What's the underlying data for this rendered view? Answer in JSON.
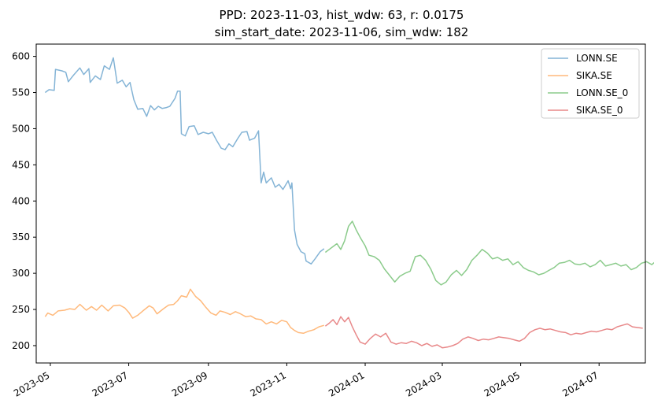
{
  "chart_data": {
    "type": "line",
    "title_line1": "PPD: 2023-11-03, hist_wdw: 63, r: 0.0175",
    "title_line2": "sim_start_date: 2023-11-06, sim_wdw: 182",
    "xlabel": "",
    "ylabel": "",
    "x_range": [
      "2023-04-20",
      "2024-08-06"
    ],
    "ylim": [
      176,
      617
    ],
    "x_ticks": [
      "2023-05",
      "2023-07",
      "2023-09",
      "2023-11",
      "2024-01",
      "2024-03",
      "2024-05",
      "2024-07"
    ],
    "y_ticks": [
      200,
      250,
      300,
      350,
      400,
      450,
      500,
      550,
      600
    ],
    "grid": false,
    "legend_position": "upper right",
    "series": [
      {
        "name": "LONN.SE",
        "color": "#1f77b4",
        "points": [
          [
            "2023-04-27",
            550
          ],
          [
            "2023-04-30",
            554
          ],
          [
            "2023-05-04",
            553
          ],
          [
            "2023-05-05",
            582
          ],
          [
            "2023-05-10",
            580
          ],
          [
            "2023-05-13",
            578
          ],
          [
            "2023-05-15",
            565
          ],
          [
            "2023-05-19",
            574
          ],
          [
            "2023-05-24",
            584
          ],
          [
            "2023-05-27",
            575
          ],
          [
            "2023-05-31",
            583
          ],
          [
            "2023-06-01",
            564
          ],
          [
            "2023-06-05",
            573
          ],
          [
            "2023-06-09",
            568
          ],
          [
            "2023-06-12",
            587
          ],
          [
            "2023-06-16",
            582
          ],
          [
            "2023-06-19",
            598
          ],
          [
            "2023-06-22",
            563
          ],
          [
            "2023-06-26",
            567
          ],
          [
            "2023-06-29",
            558
          ],
          [
            "2023-07-02",
            564
          ],
          [
            "2023-07-05",
            540
          ],
          [
            "2023-07-08",
            527
          ],
          [
            "2023-07-12",
            528
          ],
          [
            "2023-07-15",
            517
          ],
          [
            "2023-07-18",
            532
          ],
          [
            "2023-07-21",
            526
          ],
          [
            "2023-07-24",
            531
          ],
          [
            "2023-07-27",
            528
          ],
          [
            "2023-07-30",
            529
          ],
          [
            "2023-08-02",
            531
          ],
          [
            "2023-08-06",
            542
          ],
          [
            "2023-08-08",
            552
          ],
          [
            "2023-08-10",
            552
          ],
          [
            "2023-08-11",
            493
          ],
          [
            "2023-08-14",
            490
          ],
          [
            "2023-08-17",
            503
          ],
          [
            "2023-08-21",
            504
          ],
          [
            "2023-08-24",
            492
          ],
          [
            "2023-08-28",
            495
          ],
          [
            "2023-09-01",
            493
          ],
          [
            "2023-09-04",
            495
          ],
          [
            "2023-09-07",
            485
          ],
          [
            "2023-09-11",
            473
          ],
          [
            "2023-09-14",
            471
          ],
          [
            "2023-09-17",
            479
          ],
          [
            "2023-09-20",
            475
          ],
          [
            "2023-09-24",
            487
          ],
          [
            "2023-09-27",
            495
          ],
          [
            "2023-10-01",
            496
          ],
          [
            "2023-10-03",
            484
          ],
          [
            "2023-10-07",
            487
          ],
          [
            "2023-10-10",
            497
          ],
          [
            "2023-10-12",
            425
          ],
          [
            "2023-10-14",
            440
          ],
          [
            "2023-10-16",
            425
          ],
          [
            "2023-10-20",
            432
          ],
          [
            "2023-10-23",
            419
          ],
          [
            "2023-10-26",
            423
          ],
          [
            "2023-10-29",
            416
          ],
          [
            "2023-11-02",
            428
          ],
          [
            "2023-11-04",
            417
          ],
          [
            "2023-11-05",
            425
          ],
          [
            "2023-11-07",
            360
          ],
          [
            "2023-11-09",
            340
          ],
          [
            "2023-11-12",
            330
          ],
          [
            "2023-11-15",
            327
          ],
          [
            "2023-11-16",
            317
          ],
          [
            "2023-11-20",
            313
          ],
          [
            "2023-11-23",
            320
          ],
          [
            "2023-11-27",
            330
          ],
          [
            "2023-11-30",
            334
          ]
        ]
      },
      {
        "name": "SIKA.SE",
        "color": "#ff7f0e",
        "points": [
          [
            "2023-04-27",
            240
          ],
          [
            "2023-04-29",
            245
          ],
          [
            "2023-05-03",
            242
          ],
          [
            "2023-05-07",
            248
          ],
          [
            "2023-05-12",
            249
          ],
          [
            "2023-05-16",
            251
          ],
          [
            "2023-05-20",
            250
          ],
          [
            "2023-05-24",
            257
          ],
          [
            "2023-05-29",
            249
          ],
          [
            "2023-06-02",
            254
          ],
          [
            "2023-06-06",
            249
          ],
          [
            "2023-06-10",
            256
          ],
          [
            "2023-06-15",
            248
          ],
          [
            "2023-06-19",
            255
          ],
          [
            "2023-06-24",
            256
          ],
          [
            "2023-06-28",
            252
          ],
          [
            "2023-07-01",
            246
          ],
          [
            "2023-07-04",
            238
          ],
          [
            "2023-07-08",
            242
          ],
          [
            "2023-07-12",
            248
          ],
          [
            "2023-07-17",
            255
          ],
          [
            "2023-07-20",
            252
          ],
          [
            "2023-07-23",
            244
          ],
          [
            "2023-07-28",
            251
          ],
          [
            "2023-08-01",
            256
          ],
          [
            "2023-08-05",
            257
          ],
          [
            "2023-08-08",
            262
          ],
          [
            "2023-08-11",
            269
          ],
          [
            "2023-08-15",
            267
          ],
          [
            "2023-08-18",
            278
          ],
          [
            "2023-08-22",
            268
          ],
          [
            "2023-08-26",
            262
          ],
          [
            "2023-08-30",
            253
          ],
          [
            "2023-09-03",
            245
          ],
          [
            "2023-09-07",
            242
          ],
          [
            "2023-09-10",
            248
          ],
          [
            "2023-09-14",
            246
          ],
          [
            "2023-09-18",
            243
          ],
          [
            "2023-09-22",
            247
          ],
          [
            "2023-09-26",
            244
          ],
          [
            "2023-09-30",
            240
          ],
          [
            "2023-10-04",
            241
          ],
          [
            "2023-10-08",
            237
          ],
          [
            "2023-10-12",
            236
          ],
          [
            "2023-10-16",
            230
          ],
          [
            "2023-10-20",
            233
          ],
          [
            "2023-10-24",
            230
          ],
          [
            "2023-10-28",
            235
          ],
          [
            "2023-11-01",
            233
          ],
          [
            "2023-11-04",
            225
          ],
          [
            "2023-11-07",
            221
          ],
          [
            "2023-11-10",
            218
          ],
          [
            "2023-11-14",
            217
          ],
          [
            "2023-11-18",
            220
          ],
          [
            "2023-11-22",
            222
          ],
          [
            "2023-11-26",
            226
          ],
          [
            "2023-11-30",
            228
          ]
        ]
      },
      {
        "name": "LONN.SE_0",
        "color": "#2ca02c",
        "points": [
          [
            "2023-12-01",
            329
          ],
          [
            "2023-12-04",
            333
          ],
          [
            "2023-12-07",
            337
          ],
          [
            "2023-12-10",
            341
          ],
          [
            "2023-12-13",
            333
          ],
          [
            "2023-12-16",
            345
          ],
          [
            "2023-12-19",
            365
          ],
          [
            "2023-12-22",
            372
          ],
          [
            "2023-12-25",
            360
          ],
          [
            "2023-12-28",
            350
          ],
          [
            "2024-01-01",
            338
          ],
          [
            "2024-01-04",
            325
          ],
          [
            "2024-01-08",
            323
          ],
          [
            "2024-01-12",
            318
          ],
          [
            "2024-01-16",
            306
          ],
          [
            "2024-01-20",
            297
          ],
          [
            "2024-01-24",
            288
          ],
          [
            "2024-01-28",
            296
          ],
          [
            "2024-02-01",
            300
          ],
          [
            "2024-02-05",
            303
          ],
          [
            "2024-02-09",
            323
          ],
          [
            "2024-02-13",
            325
          ],
          [
            "2024-02-17",
            318
          ],
          [
            "2024-02-21",
            306
          ],
          [
            "2024-02-25",
            290
          ],
          [
            "2024-02-29",
            284
          ],
          [
            "2024-03-04",
            288
          ],
          [
            "2024-03-08",
            298
          ],
          [
            "2024-03-12",
            304
          ],
          [
            "2024-03-16",
            297
          ],
          [
            "2024-03-20",
            305
          ],
          [
            "2024-03-24",
            318
          ],
          [
            "2024-03-28",
            325
          ],
          [
            "2024-04-01",
            333
          ],
          [
            "2024-04-05",
            328
          ],
          [
            "2024-04-09",
            320
          ],
          [
            "2024-04-13",
            322
          ],
          [
            "2024-04-17",
            318
          ],
          [
            "2024-04-21",
            320
          ],
          [
            "2024-04-25",
            312
          ],
          [
            "2024-04-29",
            316
          ],
          [
            "2024-05-03",
            308
          ],
          [
            "2024-05-07",
            304
          ],
          [
            "2024-05-11",
            302
          ],
          [
            "2024-05-15",
            298
          ],
          [
            "2024-05-19",
            300
          ],
          [
            "2024-05-23",
            304
          ],
          [
            "2024-05-27",
            308
          ],
          [
            "2024-05-31",
            314
          ],
          [
            "2024-06-04",
            315
          ],
          [
            "2024-06-08",
            318
          ],
          [
            "2024-06-12",
            313
          ],
          [
            "2024-06-16",
            312
          ],
          [
            "2024-06-20",
            314
          ],
          [
            "2024-06-24",
            309
          ],
          [
            "2024-06-28",
            312
          ],
          [
            "2024-07-02",
            318
          ],
          [
            "2024-07-06",
            310
          ],
          [
            "2024-07-10",
            312
          ],
          [
            "2024-07-14",
            314
          ],
          [
            "2024-07-18",
            310
          ],
          [
            "2024-07-22",
            312
          ],
          [
            "2024-07-26",
            305
          ],
          [
            "2024-07-30",
            308
          ],
          [
            "2024-08-03",
            314
          ],
          [
            "2024-08-07",
            316
          ],
          [
            "2024-08-11",
            312
          ],
          [
            "2024-08-15",
            318
          ],
          [
            "2024-08-19",
            310
          ],
          [
            "2024-08-23",
            313
          ],
          [
            "2024-08-27",
            308
          ]
        ]
      },
      {
        "name": "SIKA.SE_0",
        "color": "#d62728",
        "points": [
          [
            "2023-12-01",
            227
          ],
          [
            "2023-12-04",
            231
          ],
          [
            "2023-12-07",
            236
          ],
          [
            "2023-12-10",
            229
          ],
          [
            "2023-12-13",
            240
          ],
          [
            "2023-12-16",
            233
          ],
          [
            "2023-12-19",
            239
          ],
          [
            "2023-12-22",
            226
          ],
          [
            "2023-12-25",
            215
          ],
          [
            "2023-12-28",
            205
          ],
          [
            "2024-01-01",
            202
          ],
          [
            "2024-01-05",
            210
          ],
          [
            "2024-01-09",
            216
          ],
          [
            "2024-01-13",
            212
          ],
          [
            "2024-01-17",
            217
          ],
          [
            "2024-01-21",
            205
          ],
          [
            "2024-01-25",
            202
          ],
          [
            "2024-01-29",
            204
          ],
          [
            "2024-02-02",
            203
          ],
          [
            "2024-02-06",
            206
          ],
          [
            "2024-02-10",
            204
          ],
          [
            "2024-02-14",
            200
          ],
          [
            "2024-02-18",
            203
          ],
          [
            "2024-02-22",
            199
          ],
          [
            "2024-02-26",
            201
          ],
          [
            "2024-03-01",
            197
          ],
          [
            "2024-03-05",
            198
          ],
          [
            "2024-03-09",
            200
          ],
          [
            "2024-03-13",
            203
          ],
          [
            "2024-03-17",
            209
          ],
          [
            "2024-03-21",
            212
          ],
          [
            "2024-03-25",
            210
          ],
          [
            "2024-03-29",
            207
          ],
          [
            "2024-04-02",
            209
          ],
          [
            "2024-04-06",
            208
          ],
          [
            "2024-04-10",
            210
          ],
          [
            "2024-04-14",
            212
          ],
          [
            "2024-04-18",
            211
          ],
          [
            "2024-04-22",
            210
          ],
          [
            "2024-04-26",
            208
          ],
          [
            "2024-04-30",
            206
          ],
          [
            "2024-05-04",
            210
          ],
          [
            "2024-05-08",
            218
          ],
          [
            "2024-05-12",
            222
          ],
          [
            "2024-05-16",
            224
          ],
          [
            "2024-05-20",
            222
          ],
          [
            "2024-05-24",
            223
          ],
          [
            "2024-05-28",
            221
          ],
          [
            "2024-06-01",
            219
          ],
          [
            "2024-06-05",
            218
          ],
          [
            "2024-06-09",
            215
          ],
          [
            "2024-06-13",
            217
          ],
          [
            "2024-06-17",
            216
          ],
          [
            "2024-06-21",
            218
          ],
          [
            "2024-06-25",
            220
          ],
          [
            "2024-06-29",
            219
          ],
          [
            "2024-07-03",
            221
          ],
          [
            "2024-07-07",
            223
          ],
          [
            "2024-07-11",
            222
          ],
          [
            "2024-07-15",
            226
          ],
          [
            "2024-07-19",
            228
          ],
          [
            "2024-07-23",
            230
          ],
          [
            "2024-07-27",
            226
          ],
          [
            "2024-07-31",
            225
          ],
          [
            "2024-08-04",
            224
          ]
        ]
      }
    ]
  }
}
